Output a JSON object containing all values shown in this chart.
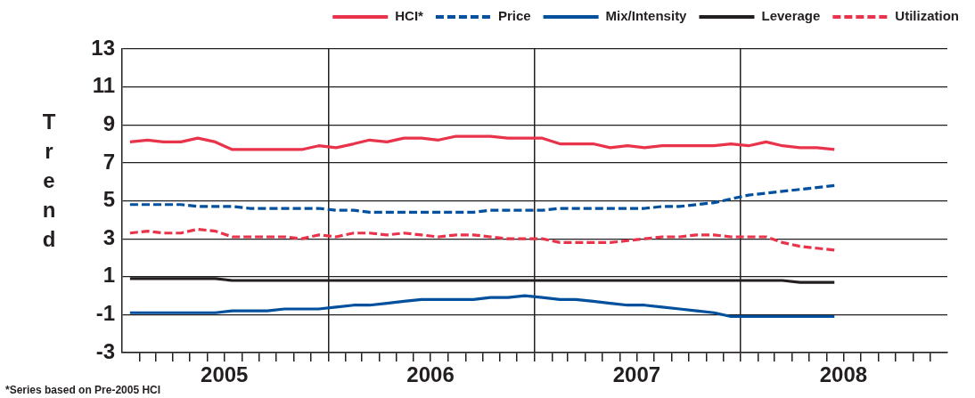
{
  "chart_data": {
    "type": "line",
    "ylabel": "Trend",
    "legend": "top",
    "grid": true,
    "marker": "none",
    "x": [
      "2005-01-15",
      "2005-02-15",
      "2005-03-15",
      "2005-04-15",
      "2005-05-15",
      "2005-06-15",
      "2005-07-15",
      "2005-08-15",
      "2005-09-15",
      "2005-10-15",
      "2005-11-15",
      "2005-12-15",
      "2006-01-15",
      "2006-02-15",
      "2006-03-15",
      "2006-04-15",
      "2006-05-15",
      "2006-06-15",
      "2006-07-15",
      "2006-08-15",
      "2006-09-15",
      "2006-10-15",
      "2006-11-15",
      "2006-12-15",
      "2007-01-15",
      "2007-02-15",
      "2007-03-15",
      "2007-04-15",
      "2007-05-15",
      "2007-06-15",
      "2007-07-15",
      "2007-08-15",
      "2007-09-15",
      "2007-10-15",
      "2007-11-15",
      "2007-12-15",
      "2008-01-15",
      "2008-02-15",
      "2008-03-15",
      "2008-04-15",
      "2008-05-15",
      "2008-06-15"
    ],
    "series": [
      {
        "name": "HCI*",
        "color": "#e8334a",
        "line_style": "solid",
        "values": [
          8.1,
          8.2,
          8.1,
          8.1,
          8.3,
          8.1,
          7.7,
          7.7,
          7.7,
          7.7,
          7.7,
          7.9,
          7.8,
          8.0,
          8.2,
          8.1,
          8.3,
          8.3,
          8.2,
          8.4,
          8.4,
          8.4,
          8.3,
          8.3,
          8.3,
          8.0,
          8.0,
          8.0,
          7.8,
          7.9,
          7.8,
          7.9,
          7.9,
          7.9,
          7.9,
          8.0,
          7.9,
          8.1,
          7.9,
          7.8,
          7.8,
          7.7
        ]
      },
      {
        "name": "Price",
        "color": "#00509e",
        "line_style": "dashed",
        "values": [
          4.8,
          4.8,
          4.8,
          4.8,
          4.7,
          4.7,
          4.7,
          4.6,
          4.6,
          4.6,
          4.6,
          4.6,
          4.5,
          4.5,
          4.4,
          4.4,
          4.4,
          4.4,
          4.4,
          4.4,
          4.4,
          4.5,
          4.5,
          4.5,
          4.5,
          4.6,
          4.6,
          4.6,
          4.6,
          4.6,
          4.6,
          4.7,
          4.7,
          4.8,
          4.9,
          5.1,
          5.3,
          5.4,
          5.5,
          5.6,
          5.7,
          5.8
        ]
      },
      {
        "name": "Mix/Intensity",
        "color": "#00509e",
        "line_style": "solid",
        "values": [
          -0.9,
          -0.9,
          -0.9,
          -0.9,
          -0.9,
          -0.9,
          -0.8,
          -0.8,
          -0.8,
          -0.7,
          -0.7,
          -0.7,
          -0.6,
          -0.5,
          -0.5,
          -0.4,
          -0.3,
          -0.2,
          -0.2,
          -0.2,
          -0.2,
          -0.1,
          -0.1,
          0.0,
          -0.1,
          -0.2,
          -0.2,
          -0.3,
          -0.4,
          -0.5,
          -0.5,
          -0.6,
          -0.7,
          -0.8,
          -0.9,
          -1.1,
          -1.1,
          -1.1,
          -1.1,
          -1.1,
          -1.1,
          -1.1
        ]
      },
      {
        "name": "Leverage",
        "color": "#231f20",
        "line_style": "solid",
        "values": [
          0.9,
          0.9,
          0.9,
          0.9,
          0.9,
          0.9,
          0.8,
          0.8,
          0.8,
          0.8,
          0.8,
          0.8,
          0.8,
          0.8,
          0.8,
          0.8,
          0.8,
          0.8,
          0.8,
          0.8,
          0.8,
          0.8,
          0.8,
          0.8,
          0.8,
          0.8,
          0.8,
          0.8,
          0.8,
          0.8,
          0.8,
          0.8,
          0.8,
          0.8,
          0.8,
          0.8,
          0.8,
          0.8,
          0.8,
          0.7,
          0.7,
          0.7
        ]
      },
      {
        "name": "Utilization",
        "color": "#e8334a",
        "line_style": "dashed",
        "values": [
          3.3,
          3.4,
          3.3,
          3.3,
          3.5,
          3.4,
          3.1,
          3.1,
          3.1,
          3.1,
          3.0,
          3.2,
          3.1,
          3.3,
          3.3,
          3.2,
          3.3,
          3.2,
          3.1,
          3.2,
          3.2,
          3.1,
          3.0,
          3.0,
          3.0,
          2.8,
          2.8,
          2.8,
          2.8,
          2.9,
          3.0,
          3.1,
          3.1,
          3.2,
          3.2,
          3.1,
          3.1,
          3.1,
          2.8,
          2.6,
          2.5,
          2.4
        ]
      }
    ],
    "xlim": [
      "2005-01-01",
      "2009-01-01"
    ],
    "xticks": [
      {
        "value": "2005-07-01",
        "label": "2005"
      },
      {
        "value": "2006-07-01",
        "label": "2006"
      },
      {
        "value": "2007-07-01",
        "label": "2007"
      },
      {
        "value": "2008-07-01",
        "label": "2008"
      },
      {
        "value": "2005-02-01",
        "label": null
      },
      {
        "value": "2005-03-01",
        "label": null
      },
      {
        "value": "2005-04-01",
        "label": null
      },
      {
        "value": "2005-05-01",
        "label": null
      },
      {
        "value": "2005-06-01",
        "label": null
      },
      {
        "value": "2005-08-01",
        "label": null
      },
      {
        "value": "2005-09-01",
        "label": null
      },
      {
        "value": "2005-10-01",
        "label": null
      },
      {
        "value": "2005-11-01",
        "label": null
      },
      {
        "value": "2005-12-01",
        "label": null
      },
      {
        "value": "2006-01-01",
        "label": null
      },
      {
        "value": "2006-02-01",
        "label": null
      },
      {
        "value": "2006-03-01",
        "label": null
      },
      {
        "value": "2006-04-01",
        "label": null
      },
      {
        "value": "2006-05-01",
        "label": null
      },
      {
        "value": "2006-06-01",
        "label": null
      },
      {
        "value": "2006-08-01",
        "label": null
      },
      {
        "value": "2006-09-01",
        "label": null
      },
      {
        "value": "2006-10-01",
        "label": null
      },
      {
        "value": "2006-11-01",
        "label": null
      },
      {
        "value": "2006-12-01",
        "label": null
      },
      {
        "value": "2007-01-01",
        "label": null
      },
      {
        "value": "2007-02-01",
        "label": null
      },
      {
        "value": "2007-03-01",
        "label": null
      },
      {
        "value": "2007-04-01",
        "label": null
      },
      {
        "value": "2007-05-01",
        "label": null
      },
      {
        "value": "2007-06-01",
        "label": null
      },
      {
        "value": "2007-08-01",
        "label": null
      },
      {
        "value": "2007-09-01",
        "label": null
      },
      {
        "value": "2007-10-01",
        "label": null
      },
      {
        "value": "2007-11-01",
        "label": null
      },
      {
        "value": "2007-12-01",
        "label": null
      },
      {
        "value": "2008-01-01",
        "label": null
      },
      {
        "value": "2008-02-01",
        "label": null
      },
      {
        "value": "2008-03-01",
        "label": null
      },
      {
        "value": "2008-04-01",
        "label": null
      },
      {
        "value": "2008-05-01",
        "label": null
      },
      {
        "value": "2008-06-01",
        "label": null
      },
      {
        "value": "2008-08-01",
        "label": null
      },
      {
        "value": "2008-09-01",
        "label": null
      },
      {
        "value": "2008-10-01",
        "label": null
      },
      {
        "value": "2008-11-01",
        "label": null
      },
      {
        "value": "2008-12-01",
        "label": null
      }
    ],
    "ylim": [
      -3,
      13
    ],
    "yticks": [
      -3,
      -1,
      1,
      3,
      5,
      7,
      9,
      11,
      13
    ],
    "annotations": [
      "*Series based on Pre-2005 HCI"
    ]
  }
}
